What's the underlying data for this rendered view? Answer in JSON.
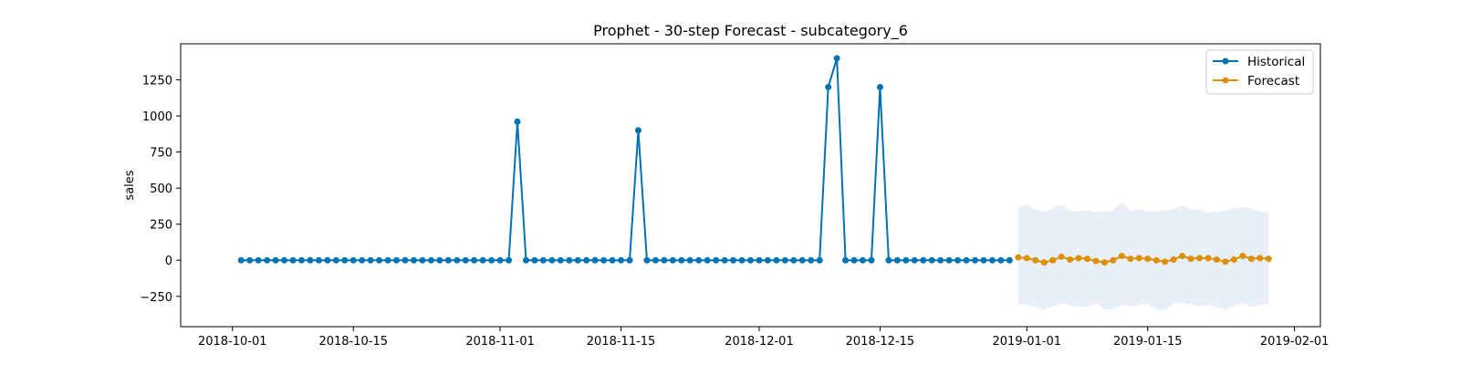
{
  "chart_data": {
    "type": "line",
    "title": "Prophet - 30-step Forecast - subcategory_6",
    "xlabel": "",
    "ylabel": "sales",
    "x_ticks": [
      "2018-10-01",
      "2018-10-15",
      "2018-11-01",
      "2018-11-15",
      "2018-12-01",
      "2018-12-15",
      "2019-01-01",
      "2019-01-15",
      "2019-02-01"
    ],
    "y_ticks": [
      -250,
      0,
      250,
      500,
      750,
      1000,
      1250
    ],
    "xlim": [
      "2018-09-25",
      "2019-02-04"
    ],
    "ylim": [
      -460,
      1500
    ],
    "legend_position": "top-right",
    "colors": {
      "historical": "#0173b2",
      "forecast": "#de8f05",
      "interval": "#e8eff7"
    },
    "historical": {
      "name": "Historical",
      "start": "2018-10-02",
      "values": [
        0,
        0,
        0,
        0,
        0,
        0,
        0,
        0,
        0,
        0,
        0,
        0,
        0,
        0,
        0,
        0,
        0,
        0,
        0,
        0,
        0,
        0,
        0,
        0,
        0,
        0,
        0,
        0,
        0,
        0,
        0,
        0,
        960,
        0,
        0,
        0,
        0,
        0,
        0,
        0,
        0,
        0,
        0,
        0,
        0,
        0,
        900,
        0,
        0,
        0,
        0,
        0,
        0,
        0,
        0,
        0,
        0,
        0,
        0,
        0,
        0,
        0,
        0,
        0,
        0,
        0,
        0,
        0,
        1200,
        1400,
        0,
        0,
        0,
        0,
        1200,
        0,
        0,
        0,
        0,
        0,
        0,
        0,
        0,
        0,
        0,
        0,
        0,
        0,
        0,
        0
      ]
    },
    "forecast": {
      "name": "Forecast",
      "start": "2018-12-31",
      "values": [
        20,
        15,
        0,
        -15,
        0,
        25,
        5,
        15,
        10,
        -5,
        -15,
        0,
        30,
        10,
        15,
        10,
        0,
        -10,
        5,
        30,
        10,
        15,
        15,
        5,
        -10,
        5,
        30,
        10,
        15,
        10
      ],
      "upper": [
        370,
        385,
        355,
        335,
        360,
        385,
        345,
        340,
        345,
        335,
        335,
        345,
        400,
        340,
        355,
        340,
        335,
        345,
        355,
        380,
        350,
        355,
        330,
        335,
        345,
        360,
        370,
        360,
        340,
        330
      ],
      "lower": [
        -300,
        -310,
        -325,
        -345,
        -320,
        -300,
        -310,
        -325,
        -320,
        -300,
        -340,
        -340,
        -310,
        -320,
        -310,
        -300,
        -340,
        -345,
        -300,
        -295,
        -305,
        -320,
        -310,
        -325,
        -345,
        -320,
        -290,
        -325,
        -310,
        -300
      ]
    }
  }
}
